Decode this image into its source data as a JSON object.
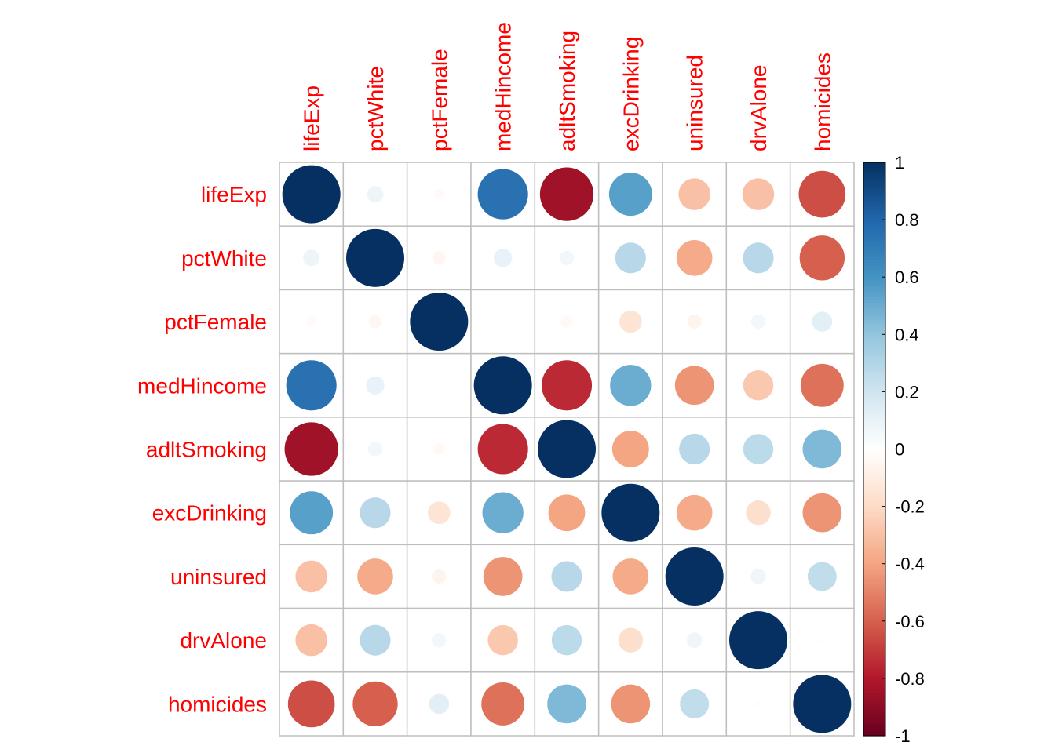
{
  "chart_data": {
    "type": "heatmap",
    "style": "corrplot-circle",
    "variables": [
      "lifeExp",
      "pctWhite",
      "pctFemale",
      "medHincome",
      "adltSmoking",
      "excDrinking",
      "uninsured",
      "drvAlone",
      "homicides"
    ],
    "matrix": [
      [
        1,
        0.08,
        -0.03,
        0.75,
        -0.85,
        0.55,
        -0.3,
        -0.3,
        -0.65
      ],
      [
        0.08,
        1,
        -0.05,
        0.1,
        0.06,
        0.28,
        -0.38,
        0.28,
        -0.6
      ],
      [
        -0.03,
        -0.05,
        1,
        0.0,
        -0.04,
        -0.15,
        -0.06,
        0.06,
        0.12
      ],
      [
        0.75,
        0.1,
        0.0,
        1,
        -0.75,
        0.5,
        -0.45,
        -0.27,
        -0.55
      ],
      [
        -0.85,
        0.06,
        -0.04,
        -0.75,
        1,
        -0.4,
        0.28,
        0.27,
        0.45
      ],
      [
        0.55,
        0.28,
        -0.15,
        0.5,
        -0.4,
        1,
        -0.38,
        -0.18,
        -0.45
      ],
      [
        -0.3,
        -0.38,
        -0.06,
        -0.45,
        0.28,
        -0.38,
        1,
        0.07,
        0.25
      ],
      [
        -0.3,
        0.28,
        0.06,
        -0.27,
        0.27,
        -0.18,
        0.07,
        1,
        -0.01
      ],
      [
        -0.65,
        -0.6,
        0.12,
        -0.55,
        0.45,
        -0.45,
        0.25,
        -0.01,
        1
      ]
    ],
    "colorbar": {
      "range": [
        -1,
        1
      ],
      "ticks": [
        "-1",
        "-0.8",
        "-0.6",
        "-0.4",
        "-0.2",
        "0",
        "0.2",
        "0.4",
        "0.6",
        "0.8",
        "1"
      ],
      "colors": [
        "#67001F",
        "#B2182B",
        "#D6604D",
        "#F4A582",
        "#FDDBC7",
        "#FFFFFF",
        "#D1E5F0",
        "#92C5DE",
        "#4393C3",
        "#2166AC",
        "#053061"
      ]
    },
    "label_color": "#FF0000",
    "grid_color": "#BEBEBE"
  }
}
